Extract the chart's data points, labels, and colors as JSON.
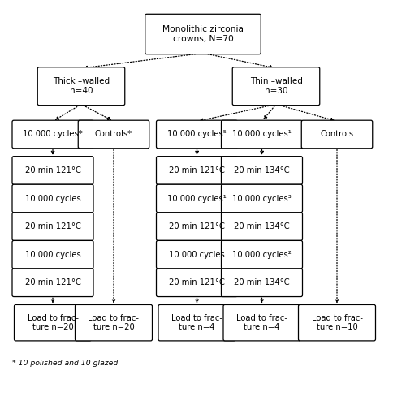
{
  "title": "Monolithic zirconia\ncrowns, N=70",
  "level1_left": "Thick –walled\nn=40",
  "level1_right": "Thin –walled\nn=30",
  "col1_boxes": [
    "10 000 cycles*",
    "20 min 121°C",
    "10 000 cycles",
    "20 min 121°C",
    "10 000 cycles",
    "20 min 121°C"
  ],
  "col2_boxes": [
    "Controls*"
  ],
  "col3_boxes": [
    "10 000 cycles⁵",
    "20 min 121°C",
    "10 000 cycles¹",
    "20 min 121°C",
    "10 000 cycles",
    "20 min 121°C"
  ],
  "col4_boxes": [
    "10 000 cycles¹",
    "20 min 134°C",
    "10 000 cycles³",
    "20 min 134°C",
    "10 000 cycles²",
    "20 min 134°C"
  ],
  "col5_boxes": [
    "Controls"
  ],
  "bottom_col1": "Load to frac-\nture n=20",
  "bottom_col2": "Load to frac-\nture n=20",
  "bottom_col3": "Load to frac-\nture n=4",
  "bottom_col4": "Load to frac-\nture n=4",
  "bottom_col5": "Load to frac-\nture n=10",
  "footnote": "* 10 polished and 10 glazed",
  "bg_color": "#ffffff",
  "line_color": "#000000",
  "text_color": "#000000",
  "font_size": 7.2
}
